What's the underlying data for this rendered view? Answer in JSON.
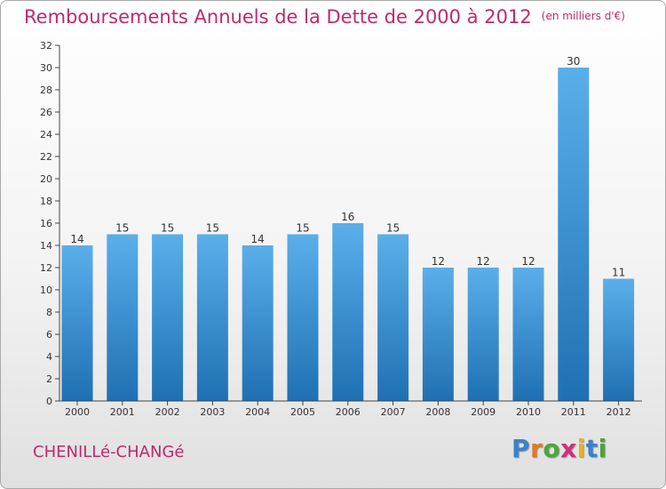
{
  "header": {
    "title": "Remboursements Annuels de la Dette de 2000 à 2012",
    "unit": "(en milliers d'€)"
  },
  "commune": "CHENILLé-CHANGé",
  "logo": {
    "letters": [
      "P",
      "r",
      "o",
      "x",
      "i",
      "t",
      "i"
    ],
    "colors": [
      "#3a83c9",
      "#e07b20",
      "#4ca63a",
      "#d12e7c",
      "#e7b21b",
      "#3a83c9",
      "#4ca63a"
    ]
  },
  "chart_data": {
    "type": "bar",
    "title": "Remboursements Annuels de la Dette de 2000 à 2012",
    "xlabel": "",
    "ylabel": "",
    "categories": [
      "2000",
      "2001",
      "2002",
      "2003",
      "2004",
      "2005",
      "2006",
      "2007",
      "2008",
      "2009",
      "2010",
      "2011",
      "2012"
    ],
    "values": [
      14,
      15,
      15,
      15,
      14,
      15,
      16,
      15,
      12,
      12,
      12,
      30,
      11
    ],
    "ylim": [
      0,
      32
    ],
    "yticks": [
      0,
      2,
      4,
      6,
      8,
      10,
      12,
      14,
      16,
      18,
      20,
      22,
      24,
      26,
      28,
      30,
      32
    ],
    "grid": false,
    "legend": "none",
    "colors": {
      "bar_top": "#5aafea",
      "bar_bottom": "#1f70b3",
      "axis": "#444444",
      "text": "#333333",
      "title": "#c0296b"
    }
  }
}
